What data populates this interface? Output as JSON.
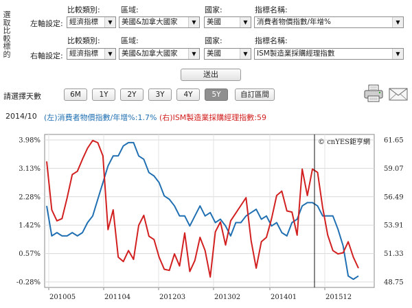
{
  "panel": {
    "side_label_chars": [
      "選",
      "取",
      "比",
      "較",
      "標",
      "的"
    ],
    "left_axis_label": "左軸設定:",
    "right_axis_label": "右軸設定:",
    "headers": {
      "category": "比較類別:",
      "region": "區域:",
      "country": "國家:",
      "indicator": "指標名稱:"
    },
    "left": {
      "category": "經濟指標",
      "region": "美國&加拿大國家",
      "country": "美國",
      "indicator": "消費者物價指數/年增%"
    },
    "right": {
      "category": "經濟指標",
      "region": "美國&加拿大國家",
      "country": "美國",
      "indicator": "ISM製造業採購經理指數"
    },
    "submit_label": "送出"
  },
  "range": {
    "label": "請選擇天數",
    "buttons": [
      "6M",
      "1Y",
      "2Y",
      "3Y",
      "4Y",
      "5Y"
    ],
    "active": "5Y",
    "custom_label": "自訂區間"
  },
  "icons": {
    "print": "printer-icon",
    "mail": "envelope-icon"
  },
  "legend": {
    "date": "2014/10",
    "left_text": "(左)消費者物價指數/年增%:1.7%",
    "right_text": "(右)ISM製造業採購經理指數:59",
    "left_color": "#1f6fb2",
    "right_color": "#d21f1f"
  },
  "chart_data": {
    "type": "line",
    "watermark": "© cnYES鉅亨網",
    "x_labels": [
      "201005",
      "201104",
      "201203",
      "201302",
      "201401",
      "201512"
    ],
    "left_axis": {
      "ticks": [
        "3.98%",
        "3.13%",
        "2.28%",
        "1.42%",
        "0.57%",
        "-0.28%"
      ],
      "ylim": [
        -0.28,
        3.98
      ]
    },
    "right_axis": {
      "ticks": [
        "61.65",
        "59.07",
        "56.49",
        "53.91",
        "51.33",
        "48.75"
      ],
      "ylim": [
        48.75,
        61.65
      ]
    },
    "cursor_label": "2014/10",
    "series": [
      {
        "name": "(左)消費者物價指數/年增%",
        "axis": "left",
        "color": "#1f6fb2",
        "values": [
          2.0,
          1.1,
          1.2,
          1.1,
          1.1,
          1.2,
          1.1,
          1.2,
          1.5,
          1.7,
          2.2,
          2.7,
          3.2,
          3.5,
          3.5,
          3.8,
          3.9,
          3.9,
          3.5,
          3.4,
          3.0,
          2.9,
          2.7,
          2.3,
          2.2,
          2.0,
          1.7,
          1.7,
          1.4,
          1.7,
          2.0,
          1.7,
          1.8,
          1.5,
          1.6,
          1.4,
          1.1,
          1.5,
          1.5,
          1.7,
          1.8,
          1.9,
          1.6,
          1.7,
          1.4,
          1.5,
          1.2,
          1.1,
          1.5,
          1.6,
          2.0,
          2.1,
          2.1,
          2.0,
          1.7,
          1.7,
          1.7,
          1.3,
          0.8,
          -0.1,
          -0.2,
          -0.1
        ]
      },
      {
        "name": "(右)ISM製造業採購經理指數",
        "axis": "right",
        "color": "#d21f1f",
        "values": [
          59.7,
          55.3,
          54.3,
          54.5,
          56.4,
          58.5,
          58.8,
          59.9,
          60.9,
          61.6,
          61.4,
          60.2,
          53.5,
          55.3,
          51.0,
          50.6,
          51.6,
          50.8,
          53.9,
          54.8,
          52.9,
          52.6,
          51.0,
          49.9,
          49.8,
          51.3,
          50.2,
          53.2,
          49.7,
          50.7,
          52.8,
          51.6,
          49.2,
          53.3,
          54.2,
          52.1,
          54.3,
          55.0,
          55.7,
          56.4,
          52.5,
          50.0,
          52.4,
          52.8,
          54.5,
          56.6,
          57.0,
          55.2,
          55.1,
          53.0,
          59.0,
          56.6,
          59.0,
          58.7,
          55.5,
          53.0,
          51.6,
          51.3,
          51.4,
          52.4,
          51.0,
          50.0
        ]
      }
    ]
  }
}
